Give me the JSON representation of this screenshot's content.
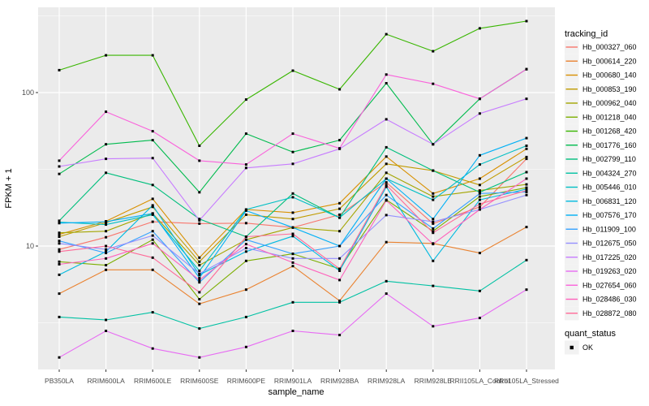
{
  "chart_data": {
    "type": "line",
    "title": "",
    "xlabel": "sample_name",
    "ylabel": "FPKM + 1",
    "y_scale": "log10",
    "y_axis_ticks": [
      "10",
      "100"
    ],
    "y_minor_gridlines": [
      3.162,
      31.623,
      316.23
    ],
    "ylim": [
      1.57,
      355
    ],
    "legend_position": "right",
    "categories": [
      "PB350LA",
      "RRIM600LA",
      "RRIM600LE",
      "RRIM600SE",
      "RRIM600PE",
      "RRIM901LA",
      "RRIM928BA",
      "RRIM928LA",
      "RRIM928LE",
      "RRII105LA_Control",
      "RRII105LA_Stressed"
    ],
    "series": [
      {
        "name": "Hb_000327_060",
        "color": "#F8766D",
        "values": [
          9.5,
          11.4,
          14.4,
          14.0,
          14.1,
          13.2,
          16.0,
          26.0,
          14.0,
          18.0,
          37.0
        ]
      },
      {
        "name": "Hb_000614_220",
        "color": "#EA8331",
        "values": [
          4.9,
          7.0,
          7.0,
          4.2,
          5.2,
          7.4,
          4.4,
          10.6,
          10.4,
          9.0,
          13.3
        ]
      },
      {
        "name": "Hb_000680_140",
        "color": "#D89000",
        "values": [
          11.9,
          14.5,
          20.3,
          8.4,
          17.3,
          16.5,
          19.0,
          38.3,
          22.0,
          27.5,
          43.0
        ]
      },
      {
        "name": "Hb_000853_190",
        "color": "#C09B00",
        "values": [
          11.5,
          14.2,
          18.0,
          7.9,
          16.0,
          15.0,
          17.5,
          34.3,
          31.0,
          25.0,
          38.0
        ]
      },
      {
        "name": "Hb_000962_040",
        "color": "#A3A500",
        "values": [
          12.2,
          12.5,
          16.3,
          7.5,
          11.0,
          13.2,
          12.5,
          30.0,
          21.0,
          23.0,
          25.2
        ]
      },
      {
        "name": "Hb_001218_040",
        "color": "#7CAE00",
        "values": [
          7.9,
          7.5,
          11.0,
          4.5,
          8.0,
          8.9,
          7.1,
          20.0,
          12.5,
          21.0,
          24.0
        ]
      },
      {
        "name": "Hb_001268_420",
        "color": "#39B600",
        "values": [
          140,
          175,
          175,
          45,
          90,
          139,
          105,
          240,
          186,
          262,
          292
        ]
      },
      {
        "name": "Hb_001776_160",
        "color": "#00BB4E",
        "values": [
          29.5,
          46,
          49,
          22.4,
          54,
          41,
          49,
          115,
          46,
          91,
          142
        ]
      },
      {
        "name": "Hb_002799_110",
        "color": "#00BF7D",
        "values": [
          14.6,
          30,
          25,
          15.0,
          11.5,
          22,
          15.3,
          44,
          31,
          22.4,
          30.3
        ]
      },
      {
        "name": "Hb_004324_270",
        "color": "#00C1A3",
        "values": [
          3.45,
          3.3,
          3.7,
          2.9,
          3.45,
          4.3,
          4.3,
          5.9,
          5.5,
          5.1,
          8.1
        ]
      },
      {
        "name": "Hb_005446_010",
        "color": "#00BFC4",
        "values": [
          14.3,
          13.8,
          16.0,
          6.9,
          17.3,
          20.8,
          15.3,
          27.5,
          20.0,
          34.0,
          45.0
        ]
      },
      {
        "name": "Hb_006831_120",
        "color": "#00BAE0",
        "values": [
          6.5,
          9.2,
          18.4,
          6.5,
          9.2,
          11.6,
          6.9,
          24.3,
          8.0,
          20.0,
          23.5
        ]
      },
      {
        "name": "Hb_007576_170",
        "color": "#00B0F6",
        "values": [
          14.1,
          14.4,
          16.3,
          6.2,
          17.0,
          13.2,
          10.0,
          27.5,
          15.0,
          39.0,
          50.5
        ]
      },
      {
        "name": "Hb_011909_100",
        "color": "#35A2FF",
        "values": [
          10.8,
          9.0,
          12.5,
          5.8,
          11.0,
          8.9,
          10.0,
          21.5,
          13.0,
          22.0,
          22.5
        ]
      },
      {
        "name": "Hb_012675_050",
        "color": "#9590FF",
        "values": [
          10.4,
          9.5,
          11.7,
          6.6,
          9.7,
          8.3,
          8.3,
          15.9,
          14.4,
          17.3,
          21.5
        ]
      },
      {
        "name": "Hb_017225_020",
        "color": "#C77CFF",
        "values": [
          33,
          37,
          37.4,
          14.7,
          32.3,
          34.3,
          43,
          67,
          46,
          73,
          91
        ]
      },
      {
        "name": "Hb_019263_020",
        "color": "#E76BF3",
        "values": [
          1.88,
          2.8,
          2.15,
          1.88,
          2.2,
          2.8,
          2.63,
          4.9,
          3.0,
          3.4,
          5.2
        ]
      },
      {
        "name": "Hb_027654_060",
        "color": "#FA62DB",
        "values": [
          36,
          75,
          56,
          36,
          34,
          54,
          43.3,
          131,
          114,
          91,
          142
        ]
      },
      {
        "name": "Hb_028486_030",
        "color": "#FF62BC",
        "values": [
          7.6,
          8.3,
          10.4,
          6.0,
          10.3,
          7.8,
          6.0,
          19.8,
          10.3,
          17.3,
          27.5
        ]
      },
      {
        "name": "Hb_028872_080",
        "color": "#FF6A98",
        "values": [
          9.2,
          10.0,
          8.4,
          5.0,
          11.5,
          12.0,
          7.1,
          25.0,
          12.2,
          18.8,
          23.0
        ]
      }
    ],
    "legends": {
      "color": {
        "title": "tracking_id"
      },
      "shape": {
        "title": "quant_status",
        "entries": [
          {
            "label": "OK",
            "shape": "filled-square",
            "color": "#000000"
          }
        ]
      }
    },
    "style": {
      "panel_bg": "#EBEBEB",
      "grid_color": "#FFFFFF",
      "tick_label_color": "#4D4D4D",
      "axis_title_color": "#000000",
      "marker_color": "#000000",
      "legend_key_bg": "#F2F2F2"
    }
  }
}
